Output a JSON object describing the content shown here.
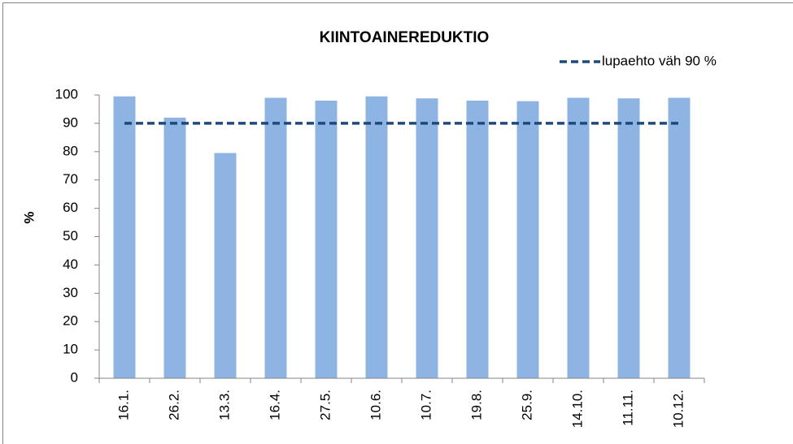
{
  "chart_data": {
    "type": "bar",
    "title": "KIINTOAINEREDUKTIO",
    "y_label": "%",
    "categories": [
      "16.1.",
      "26.2.",
      "13.3.",
      "16.4.",
      "27.5.",
      "10.6.",
      "10.7.",
      "19.8.",
      "25.9.",
      "14.10.",
      "11.11.",
      "10.12."
    ],
    "values": [
      99.5,
      92,
      79.5,
      99,
      98,
      99.5,
      98.8,
      98,
      97.8,
      99,
      98.8,
      99
    ],
    "color": "#8eb4e3",
    "series": [
      {
        "name": "lupaehto väh 90 %",
        "type": "line",
        "color": "#1f497d",
        "values": [
          90,
          90,
          90,
          90,
          90,
          90,
          90,
          90,
          90,
          90,
          90,
          90
        ]
      }
    ],
    "ylim": [
      0,
      100
    ],
    "yticks": [
      0,
      10,
      20,
      30,
      40,
      50,
      60,
      70,
      80,
      90,
      100
    ],
    "grid": false,
    "legend": "top-right"
  }
}
